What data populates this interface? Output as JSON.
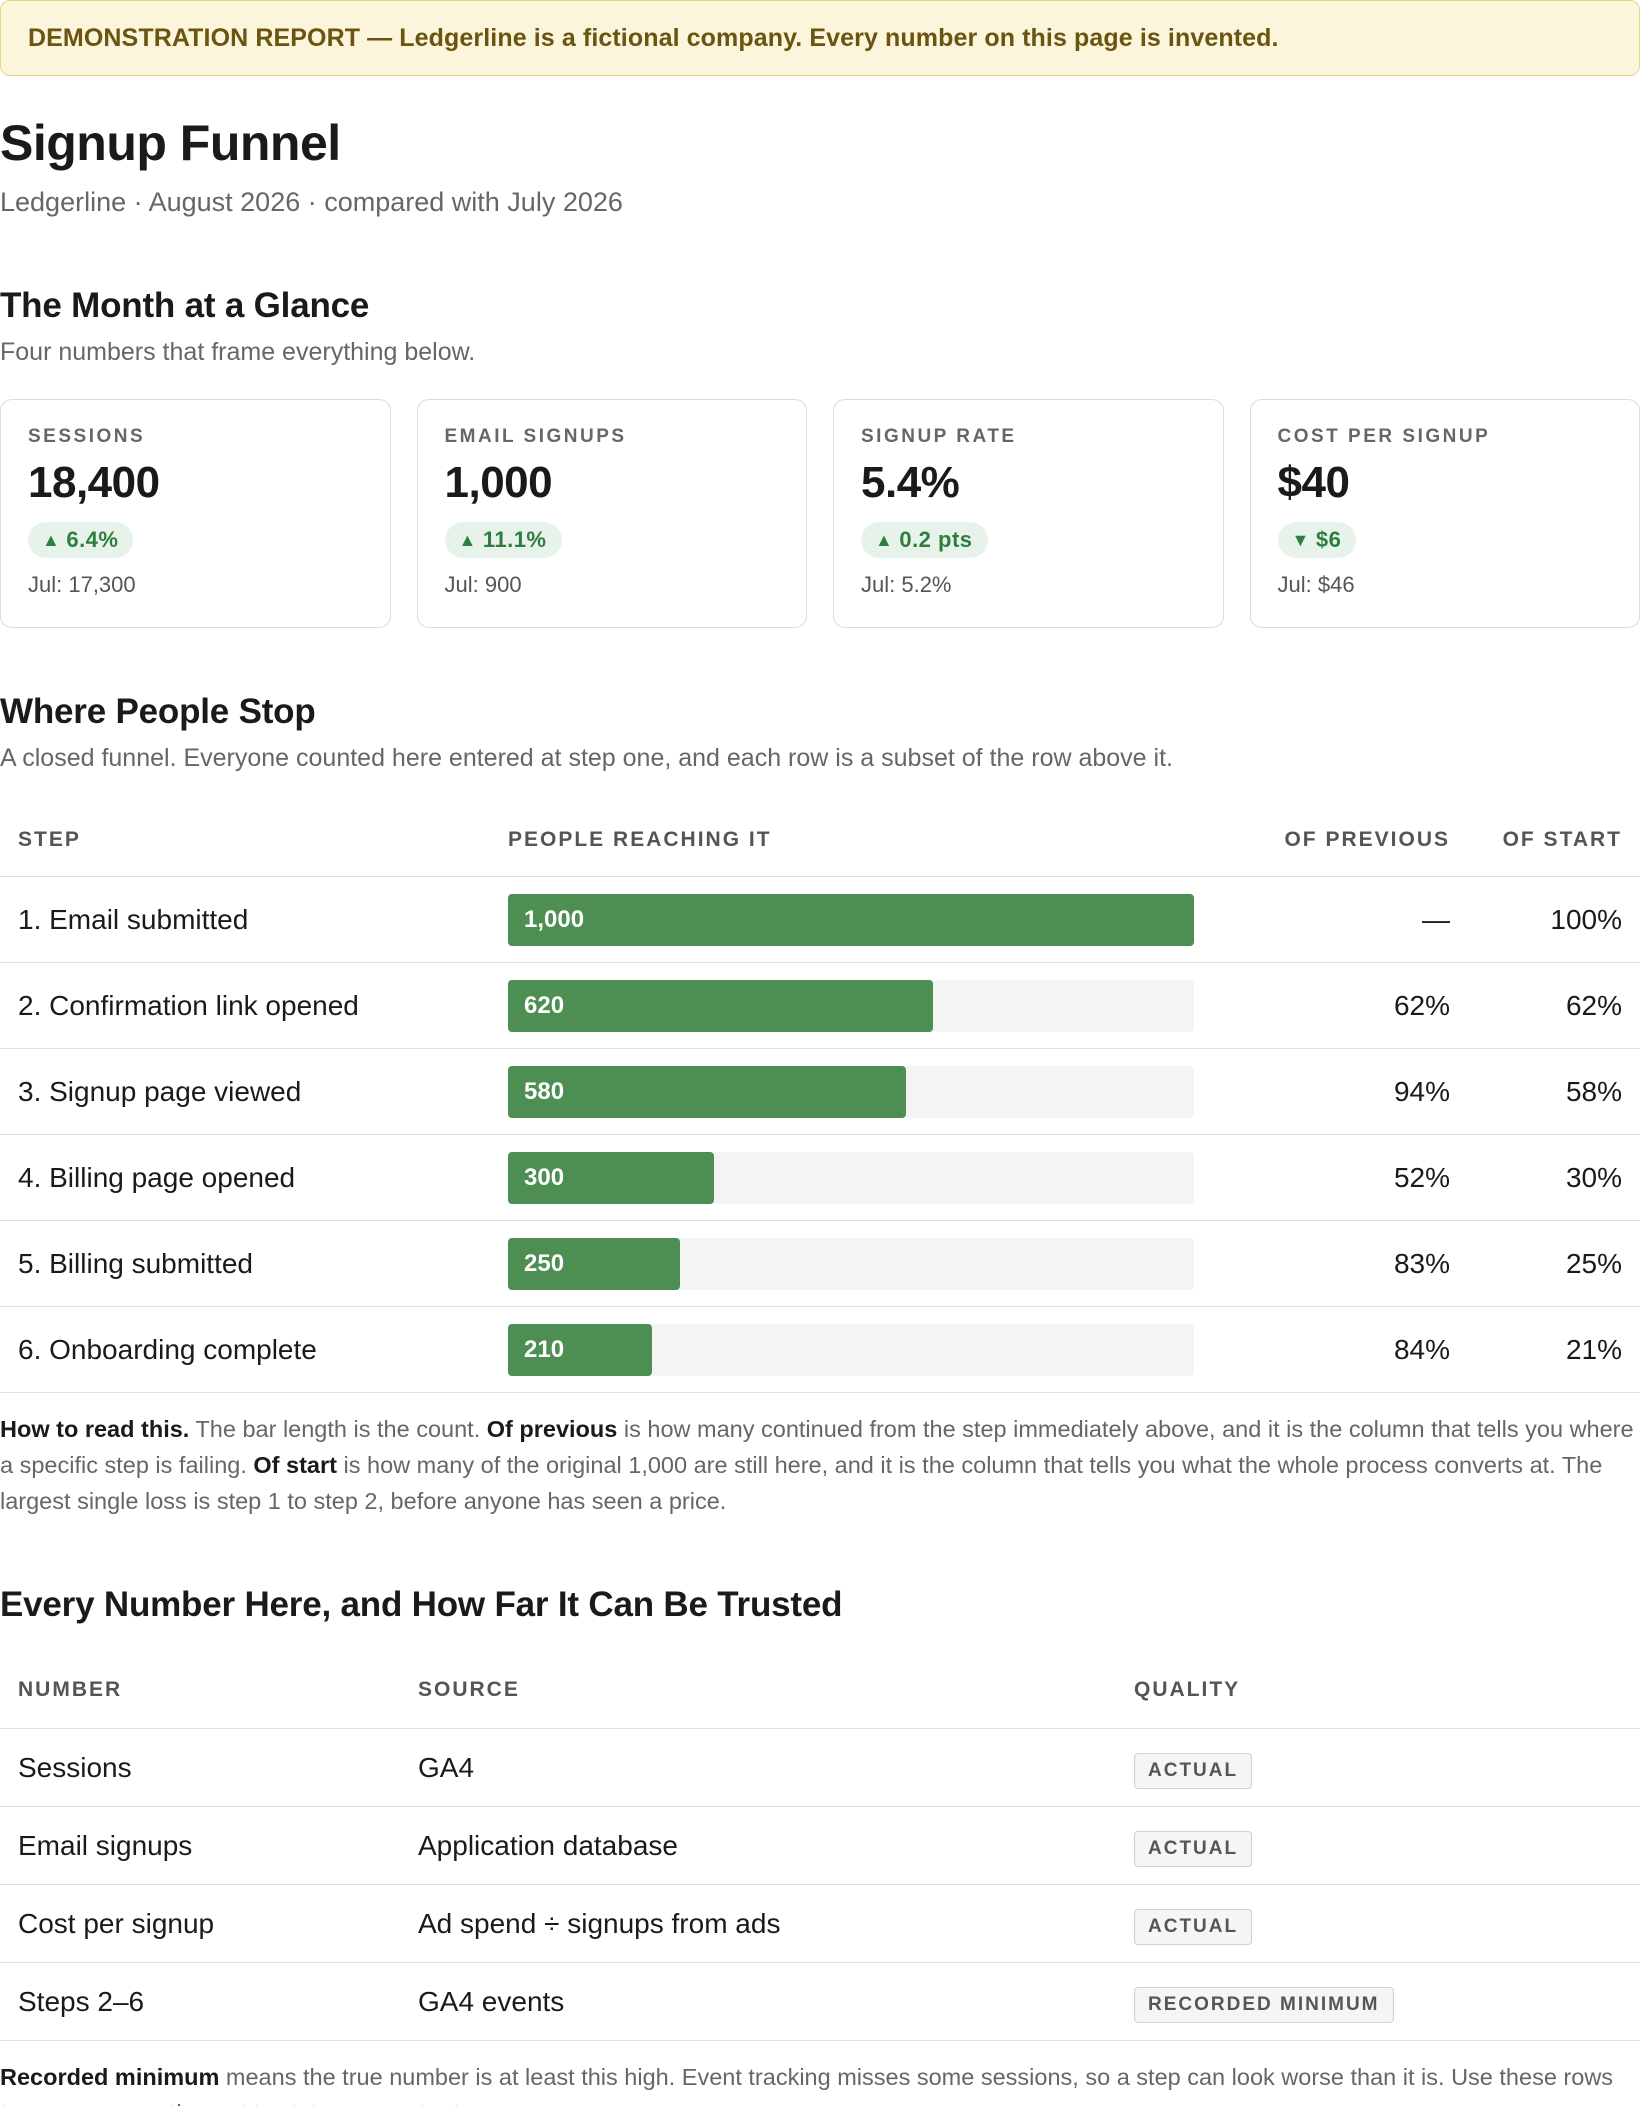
{
  "banner": "DEMONSTRATION REPORT — Ledgerline is a fictional company. Every number on this page is invented.",
  "header": {
    "title": "Signup Funnel",
    "subtitle": "Ledgerline · August 2026 · compared with July 2026"
  },
  "glance": {
    "heading": "The Month at a Glance",
    "lede": "Four numbers that frame everything below.",
    "kpis": [
      {
        "label": "SESSIONS",
        "value": "18,400",
        "delta": "6.4%",
        "direction": "up",
        "prev": "Jul: 17,300"
      },
      {
        "label": "EMAIL SIGNUPS",
        "value": "1,000",
        "delta": "11.1%",
        "direction": "up",
        "prev": "Jul: 900"
      },
      {
        "label": "SIGNUP RATE",
        "value": "5.4%",
        "delta": "0.2 pts",
        "direction": "up",
        "prev": "Jul: 5.2%"
      },
      {
        "label": "COST PER SIGNUP",
        "value": "$40",
        "delta": "$6",
        "direction": "down",
        "prev": "Jul: $46"
      }
    ],
    "up_glyph": "▲",
    "down_glyph": "▼"
  },
  "funnel": {
    "heading": "Where People Stop",
    "lede": "A closed funnel. Everyone counted here entered at step one, and each row is a subset of the row above it.",
    "columns": [
      "STEP",
      "PEOPLE REACHING IT",
      "OF PREVIOUS",
      "OF START"
    ],
    "rows": [
      {
        "step": "1. Email submitted",
        "count": 1000,
        "count_label": "1,000",
        "of_previous": "—",
        "of_start": "100%"
      },
      {
        "step": "2. Confirmation link opened",
        "count": 620,
        "count_label": "620",
        "of_previous": "62%",
        "of_start": "62%"
      },
      {
        "step": "3. Signup page viewed",
        "count": 580,
        "count_label": "580",
        "of_previous": "94%",
        "of_start": "58%"
      },
      {
        "step": "4. Billing page opened",
        "count": 300,
        "count_label": "300",
        "of_previous": "52%",
        "of_start": "30%"
      },
      {
        "step": "5. Billing submitted",
        "count": 250,
        "count_label": "250",
        "of_previous": "83%",
        "of_start": "25%"
      },
      {
        "step": "6. Onboarding complete",
        "count": 210,
        "count_label": "210",
        "of_previous": "84%",
        "of_start": "21%"
      }
    ],
    "max_count": 1000,
    "bar_color": "#4d8f52",
    "note": {
      "lead": "How to read this.",
      "t1": " The bar length is the count. ",
      "b1": "Of previous",
      "t2": " is how many continued from the step immediately above, and it is the column that tells you where a specific step is failing. ",
      "b2": "Of start",
      "t3": " is how many of the original 1,000 are still here, and it is the column that tells you what the whole process converts at. The largest single loss is step 1 to step 2, before anyone has seen a price."
    }
  },
  "trust": {
    "heading": "Every Number Here, and How Far It Can Be Trusted",
    "columns": [
      "NUMBER",
      "SOURCE",
      "QUALITY"
    ],
    "rows": [
      {
        "number": "Sessions",
        "source": "GA4",
        "quality": "ACTUAL"
      },
      {
        "number": "Email signups",
        "source": "Application database",
        "quality": "ACTUAL"
      },
      {
        "number": "Cost per signup",
        "source": "Ad spend ÷ signups from ads",
        "quality": "ACTUAL"
      },
      {
        "number": "Steps 2–6",
        "source": "GA4 events",
        "quality": "RECORDED MINIMUM"
      }
    ],
    "footnote": {
      "lead": "Recorded minimum",
      "text": " means the true number is at least this high. Event tracking misses some sessions, so a step can look worse than it is. Use these rows to compare months, not to state an exact rate."
    }
  }
}
